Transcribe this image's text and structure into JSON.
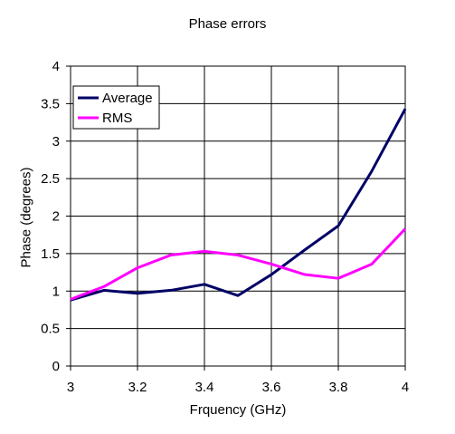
{
  "chart_data": {
    "type": "line",
    "title": "Phase errors",
    "xlabel": "Frquency (GHz)",
    "ylabel": "Phase (degrees)",
    "xlim": [
      3,
      4
    ],
    "ylim": [
      0,
      4
    ],
    "x_ticks": [
      "3",
      "3.2",
      "3.4",
      "3.6",
      "3.8",
      "4"
    ],
    "y_ticks": [
      "0",
      "0.5",
      "1",
      "1.5",
      "2",
      "2.5",
      "3",
      "3.5",
      "4"
    ],
    "grid": true,
    "legend_position": "top-left",
    "x": [
      3.0,
      3.1,
      3.2,
      3.3,
      3.4,
      3.5,
      3.6,
      3.7,
      3.8,
      3.9,
      4.0
    ],
    "series": [
      {
        "name": "Average",
        "color": "#000066",
        "values": [
          0.88,
          1.01,
          0.97,
          1.01,
          1.09,
          0.94,
          1.22,
          1.55,
          1.87,
          2.6,
          3.43
        ]
      },
      {
        "name": "RMS",
        "color": "#ff00ff",
        "values": [
          0.89,
          1.06,
          1.31,
          1.48,
          1.53,
          1.48,
          1.36,
          1.22,
          1.17,
          1.36,
          1.83
        ]
      }
    ]
  }
}
